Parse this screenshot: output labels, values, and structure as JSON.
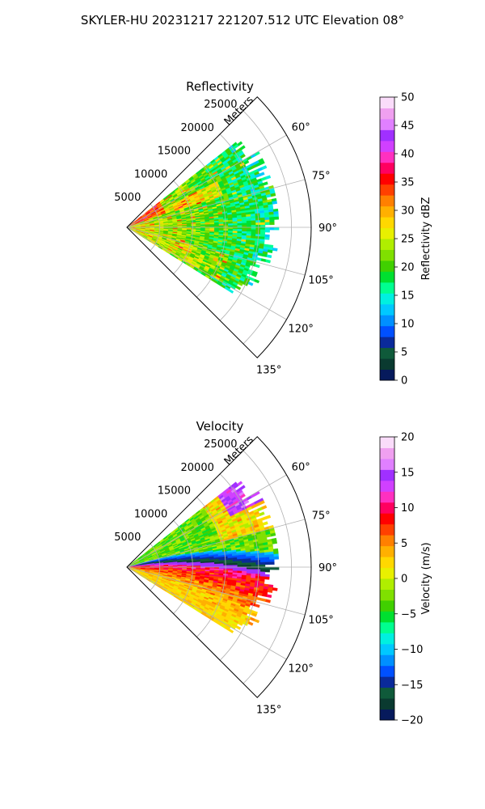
{
  "figure": {
    "suptitle": "SKYLER-HU  20231217  221207.512 UTC Elevation 08°"
  },
  "chart_data": [
    {
      "type": "heatmap",
      "projection": "polar-sector",
      "title": "Reflectivity",
      "range_axis_label": "Meters",
      "range_ticks": [
        5000,
        10000,
        15000,
        20000,
        25000
      ],
      "range_tick_labels": [
        "5000",
        "10000",
        "15000",
        "20000",
        "25000"
      ],
      "range_lim": [
        0,
        28000
      ],
      "azimuth_lim_deg": [
        45,
        135
      ],
      "azimuth_ticks": [
        60,
        75,
        90,
        105,
        120,
        135
      ],
      "azimuth_tick_labels": [
        "60°",
        "75°",
        "90°",
        "105°",
        "120°",
        "135°"
      ],
      "data_extent_deg": [
        52,
        122
      ],
      "data_extent_range": [
        0,
        23000
      ],
      "grid": true,
      "colorbar": {
        "label": "Reflectivity dBZ",
        "range": [
          0,
          50
        ],
        "ticks": [
          0,
          5,
          10,
          15,
          20,
          25,
          30,
          35,
          40,
          45,
          50
        ],
        "tick_labels": [
          "0",
          "5",
          "10",
          "15",
          "20",
          "25",
          "30",
          "35",
          "40",
          "45",
          "50"
        ],
        "colors": [
          "#061a5c",
          "#0a3a30",
          "#0f5a3a",
          "#0a2a9a",
          "#0050ff",
          "#0090ff",
          "#00c8ff",
          "#00f0e0",
          "#00ff90",
          "#00e030",
          "#40d000",
          "#80e000",
          "#b0ee00",
          "#e8f000",
          "#ffd800",
          "#ffb000",
          "#ff8000",
          "#ff4000",
          "#ff0000",
          "#ff0060",
          "#ff30c0",
          "#d040ff",
          "#a030ff",
          "#e080ff",
          "#f0a0f0",
          "#fadcfa"
        ]
      }
    },
    {
      "type": "heatmap",
      "projection": "polar-sector",
      "title": "Velocity",
      "range_axis_label": "Meters",
      "range_ticks": [
        5000,
        10000,
        15000,
        20000,
        25000
      ],
      "range_tick_labels": [
        "5000",
        "10000",
        "15000",
        "20000",
        "25000"
      ],
      "range_lim": [
        0,
        28000
      ],
      "azimuth_lim_deg": [
        45,
        135
      ],
      "azimuth_ticks": [
        60,
        75,
        90,
        105,
        120,
        135
      ],
      "azimuth_tick_labels": [
        "60°",
        "75°",
        "90°",
        "105°",
        "120°",
        "135°"
      ],
      "data_extent_deg": [
        52,
        122
      ],
      "data_extent_range": [
        0,
        23000
      ],
      "grid": true,
      "colorbar": {
        "label": "Velocity (m/s)",
        "range": [
          -20,
          20
        ],
        "ticks": [
          -20,
          -15,
          -10,
          -5,
          0,
          5,
          10,
          15,
          20
        ],
        "tick_labels": [
          "−20",
          "−15",
          "−10",
          "−5",
          "0",
          "5",
          "10",
          "15",
          "20"
        ],
        "colors": [
          "#061a5c",
          "#0a3a30",
          "#0f5a3a",
          "#0a2a9a",
          "#0050ff",
          "#0090ff",
          "#00c8ff",
          "#00f0e0",
          "#00ff90",
          "#00e030",
          "#40d000",
          "#80e000",
          "#b0ee00",
          "#e8f000",
          "#ffd800",
          "#ffb000",
          "#ff8000",
          "#ff4000",
          "#ff0000",
          "#ff0060",
          "#ff30c0",
          "#d040ff",
          "#a030ff",
          "#e080ff",
          "#f0a0f0",
          "#fadcfa"
        ]
      }
    }
  ]
}
